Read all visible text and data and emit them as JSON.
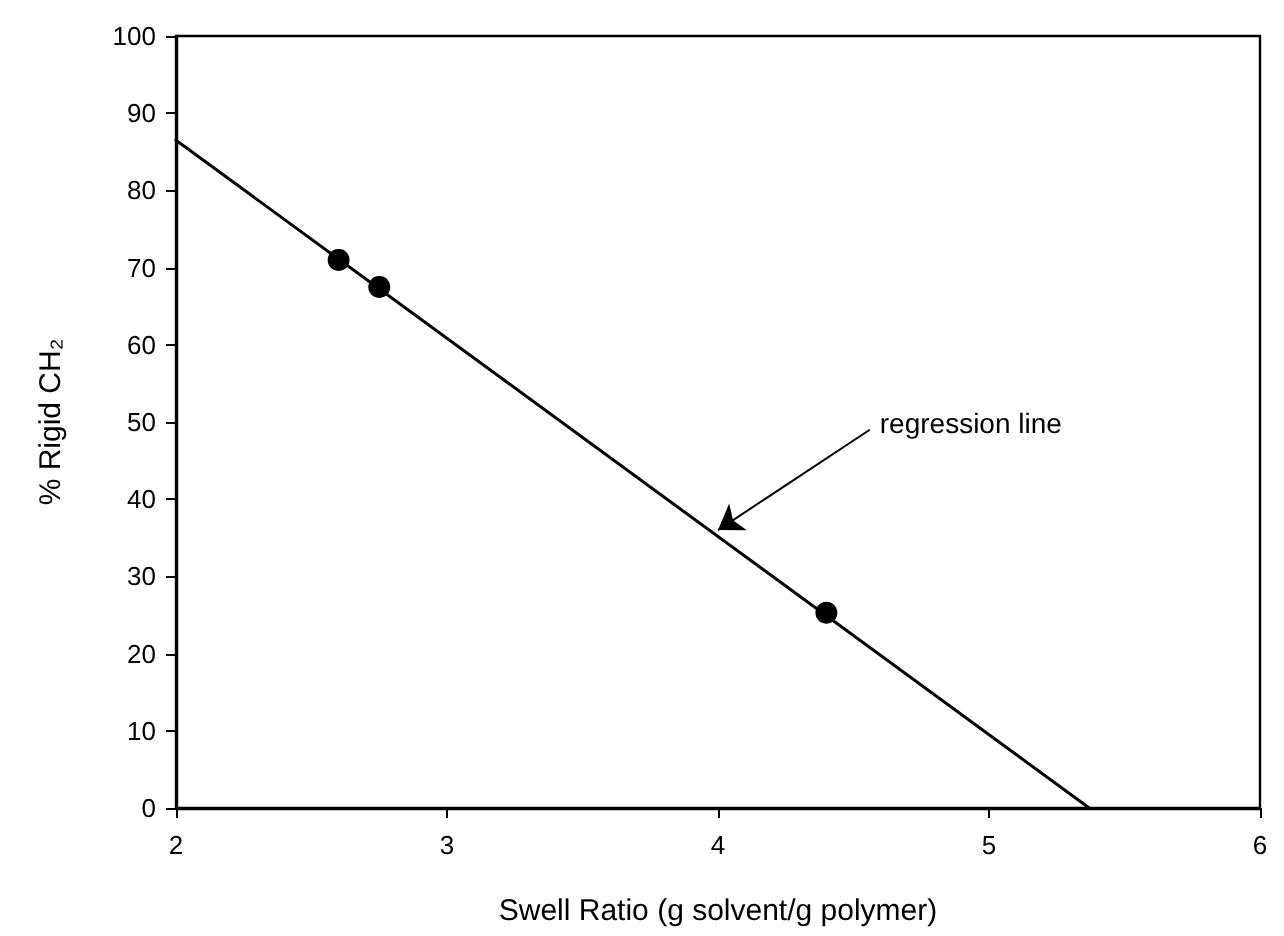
{
  "chart_data": {
    "type": "scatter",
    "xlabel": "Swell Ratio (g solvent/g polymer)",
    "ylabel": "% Rigid CH₂",
    "xlim": [
      2,
      6
    ],
    "xticks": [
      2,
      3,
      4,
      5,
      6
    ],
    "ylim": [
      0,
      100
    ],
    "yticks": [
      0,
      10,
      20,
      30,
      40,
      50,
      60,
      70,
      80,
      90,
      100
    ],
    "grid": false,
    "marker": "circle",
    "series": [
      {
        "color": "#000000",
        "x": [
          2.6,
          2.75,
          4.4
        ],
        "values": [
          71,
          67.5,
          25.3
        ]
      },
      {
        "type": "line",
        "color": "#000000",
        "x": [
          2,
          5.37
        ],
        "values": [
          86.5,
          0
        ],
        "marker": "none",
        "line_style": "solid"
      }
    ],
    "annotations": [
      {
        "text": "regression line",
        "x": 4,
        "y": 36
      }
    ]
  }
}
